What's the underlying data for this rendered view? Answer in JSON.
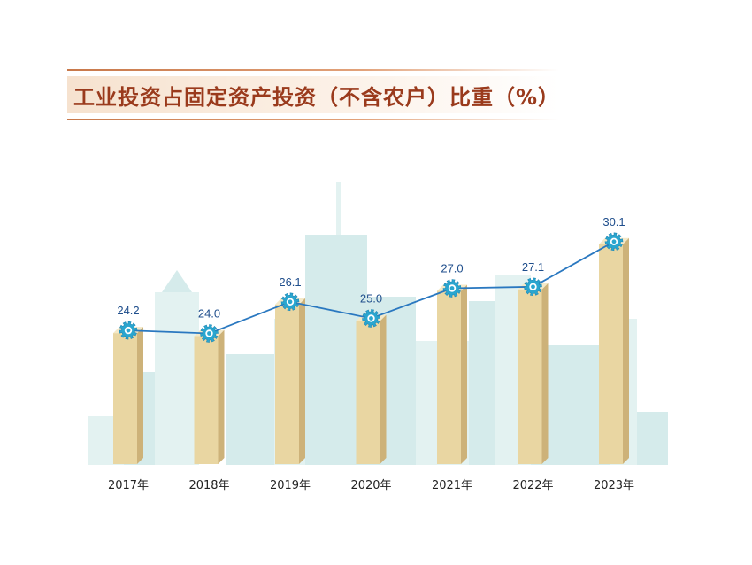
{
  "title": "工业投资占固定资产投资（不含农户）比重（%）",
  "colors": {
    "title": "#9a3a1c",
    "bar_front": "#e9d6a2",
    "bar_side": "#cdb279",
    "bar_top": "#f4e9c8",
    "line": "#2a78c0",
    "marker": "#2aa6cf",
    "value_label": "#1f4e8c",
    "skyline": "#dbeeee"
  },
  "chart_data": {
    "type": "bar",
    "overlay": "line",
    "categories": [
      "2017年",
      "2018年",
      "2019年",
      "2020年",
      "2021年",
      "2022年",
      "2023年"
    ],
    "values": [
      24.2,
      24.0,
      26.1,
      25.0,
      27.0,
      27.1,
      30.1
    ],
    "value_labels": [
      "24.2",
      "24.0",
      "26.1",
      "25.0",
      "27.0",
      "27.1",
      "30.1"
    ],
    "title": "工业投资占固定资产投资（不含农户）比重（%）",
    "xlabel": "",
    "ylabel": "",
    "grid": false,
    "legend": "none",
    "marker_icon": "gear-icon"
  }
}
